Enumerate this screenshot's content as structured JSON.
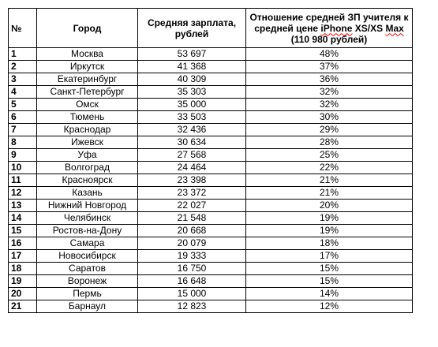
{
  "table": {
    "headers": {
      "num": "№",
      "city": "Город",
      "salary": "Средняя зарплата, рублей",
      "ratio_part1": "Отношение средней ЗП учителя к средней цене ",
      "ratio_iphone": "iPhone",
      "ratio_part2": " XS/XS ",
      "ratio_max": "Max",
      "ratio_part3": " (110 980 рублей)"
    },
    "rows": [
      {
        "num": "1",
        "city": "Москва",
        "salary": "53 697",
        "ratio": "48%"
      },
      {
        "num": "2",
        "city": "Иркутск",
        "salary": "41 368",
        "ratio": "37%"
      },
      {
        "num": "3",
        "city": "Екатеринбург",
        "salary": "40 309",
        "ratio": "36%"
      },
      {
        "num": "4",
        "city": "Санкт-Петербург",
        "salary": "35 303",
        "ratio": "32%"
      },
      {
        "num": "5",
        "city": "Омск",
        "salary": "35 000",
        "ratio": "32%"
      },
      {
        "num": "6",
        "city": "Тюмень",
        "salary": "33 503",
        "ratio": "30%"
      },
      {
        "num": "7",
        "city": "Краснодар",
        "salary": "32 436",
        "ratio": "29%"
      },
      {
        "num": "8",
        "city": "Ижевск",
        "salary": "30 634",
        "ratio": "28%"
      },
      {
        "num": "9",
        "city": "Уфа",
        "salary": "27 568",
        "ratio": "25%"
      },
      {
        "num": "10",
        "city": "Волгоград",
        "salary": "24 464",
        "ratio": "22%"
      },
      {
        "num": "11",
        "city": "Красноярск",
        "salary": "23 398",
        "ratio": "21%"
      },
      {
        "num": "12",
        "city": "Казань",
        "salary": "23 372",
        "ratio": "21%"
      },
      {
        "num": "13",
        "city": "Нижний Новгород",
        "salary": "22 027",
        "ratio": "20%"
      },
      {
        "num": "14",
        "city": "Челябинск",
        "salary": "21 548",
        "ratio": "19%"
      },
      {
        "num": "15",
        "city": "Ростов-на-Дону",
        "salary": "20 668",
        "ratio": "19%"
      },
      {
        "num": "16",
        "city": "Самара",
        "salary": "20 079",
        "ratio": "18%"
      },
      {
        "num": "17",
        "city": "Новосибирск",
        "salary": "19 333",
        "ratio": "17%"
      },
      {
        "num": "18",
        "city": "Саратов",
        "salary": "16 750",
        "ratio": "15%"
      },
      {
        "num": "19",
        "city": "Воронеж",
        "salary": "16 648",
        "ratio": "15%"
      },
      {
        "num": "20",
        "city": "Пермь",
        "salary": "15 000",
        "ratio": "14%"
      },
      {
        "num": "21",
        "city": "Барнаул",
        "salary": "12 823",
        "ratio": "12%"
      }
    ]
  },
  "colors": {
    "border": "#000000",
    "text": "#000000",
    "background": "#ffffff",
    "spellcheck_underline": "#ff0000"
  }
}
